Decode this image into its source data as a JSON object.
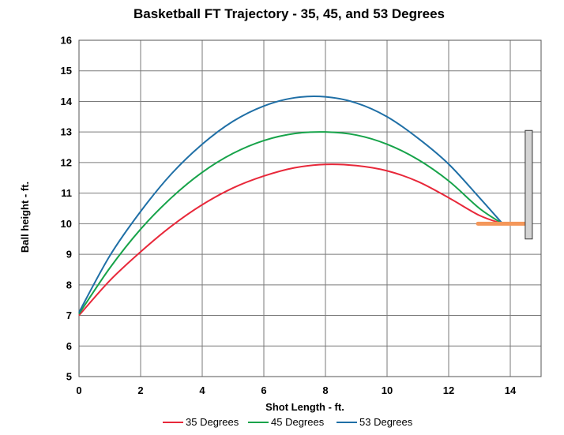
{
  "chart_data": {
    "type": "line",
    "title": "Basketball FT Trajectory - 35, 45, and 53 Degrees",
    "xlabel": "Shot Length - ft.",
    "ylabel": "Ball height - ft.",
    "xlim": [
      0,
      15
    ],
    "ylim": [
      5,
      16
    ],
    "xticks": [
      0,
      2,
      4,
      6,
      8,
      10,
      12,
      14
    ],
    "yticks": [
      5,
      6,
      7,
      8,
      9,
      10,
      11,
      12,
      13,
      14,
      15,
      16
    ],
    "grid": true,
    "legend": "bottom",
    "series": [
      {
        "name": "35 Degrees",
        "color": "#e8283a",
        "x": [
          0,
          1,
          2,
          3,
          4,
          5,
          6,
          7,
          8,
          9,
          10,
          11,
          12,
          13,
          13.75
        ],
        "y": [
          7.0,
          8.14,
          9.08,
          9.92,
          10.62,
          11.17,
          11.56,
          11.83,
          11.94,
          11.9,
          11.73,
          11.38,
          10.85,
          10.27,
          10.0
        ]
      },
      {
        "name": "45 Degrees",
        "color": "#17a34a",
        "x": [
          0,
          1,
          2,
          3,
          4,
          5,
          6,
          7,
          8,
          9,
          10,
          11,
          12,
          13,
          13.75
        ],
        "y": [
          7.05,
          8.55,
          9.82,
          10.85,
          11.68,
          12.3,
          12.72,
          12.95,
          13.0,
          12.9,
          12.6,
          12.1,
          11.4,
          10.5,
          10.0
        ]
      },
      {
        "name": "53 Degrees",
        "color": "#1f6fa6",
        "x": [
          0,
          1,
          2,
          3,
          4,
          5,
          6,
          7,
          8,
          9,
          10,
          11,
          12,
          13,
          13.75
        ],
        "y": [
          7.1,
          8.95,
          10.4,
          11.63,
          12.6,
          13.35,
          13.85,
          14.12,
          14.15,
          13.95,
          13.5,
          12.8,
          11.95,
          10.85,
          10.0
        ]
      }
    ],
    "rim": {
      "x_start": 12.95,
      "x_end": 14.5,
      "y": 10.0,
      "color": "#f4975a"
    },
    "backboard": {
      "x": 14.6,
      "y_bottom": 9.5,
      "y_top": 13.05,
      "color": "#d4d4d4"
    }
  }
}
